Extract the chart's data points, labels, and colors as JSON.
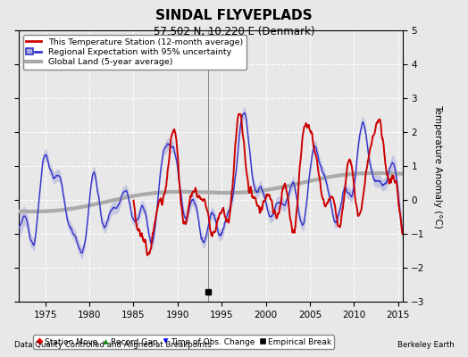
{
  "title": "SINDAL FLYVEPLADS",
  "subtitle": "57.502 N, 10.220 E (Denmark)",
  "ylabel": "Temperature Anomaly (°C)",
  "xlabel_left": "Data Quality Controlled and Aligned at Breakpoints",
  "xlabel_right": "Berkeley Earth",
  "ylim": [
    -3,
    5
  ],
  "xlim": [
    1972,
    2015.5
  ],
  "xticks": [
    1975,
    1980,
    1985,
    1990,
    1995,
    2000,
    2005,
    2010,
    2015
  ],
  "yticks": [
    -3,
    -2,
    -1,
    0,
    1,
    2,
    3,
    4,
    5
  ],
  "bg_color": "#e8e8e8",
  "plot_bg_color": "#e8e8e8",
  "legend_entries": [
    "This Temperature Station (12-month average)",
    "Regional Expectation with 95% uncertainty",
    "Global Land (5-year average)"
  ],
  "station_color": "#cc0000",
  "regional_color": "#3333cc",
  "regional_fill_color": "#aaaadd",
  "global_color": "#aaaaaa",
  "vertical_line_x": 1993.5,
  "empirical_break_x": 1993.5,
  "station_start_year": 1985.0,
  "station_end_year": 2015.0
}
